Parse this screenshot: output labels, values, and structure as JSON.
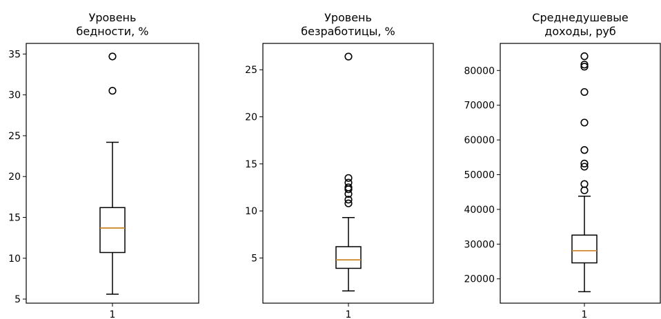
{
  "chart_data": [
    {
      "type": "boxplot",
      "title": [
        "Уровень",
        "бедности, %"
      ],
      "xlabel": "",
      "ylabel": "",
      "ylim": [
        4.5,
        36.3
      ],
      "yticks": [
        5,
        10,
        15,
        20,
        25,
        30,
        35
      ],
      "categories": [
        "1"
      ],
      "box": {
        "whisker_low": 5.6,
        "q1": 10.7,
        "median": 13.7,
        "q3": 16.2,
        "whisker_high": 24.2,
        "outliers": [
          30.5,
          34.7
        ]
      }
    },
    {
      "type": "boxplot",
      "title": [
        "Уровень",
        "безработицы, %"
      ],
      "xlabel": "",
      "ylabel": "",
      "ylim": [
        0.2,
        27.8
      ],
      "yticks": [
        5,
        10,
        15,
        20,
        25
      ],
      "categories": [
        "1"
      ],
      "box": {
        "whisker_low": 1.5,
        "q1": 3.9,
        "median": 4.8,
        "q3": 6.2,
        "whisker_high": 9.3,
        "outliers": [
          10.8,
          11.2,
          11.8,
          12.3,
          12.5,
          13.0,
          13.5,
          26.4
        ]
      }
    },
    {
      "type": "boxplot",
      "title": [
        "Среднедушевые",
        "доходы, руб"
      ],
      "xlabel": "",
      "ylabel": "",
      "ylim": [
        13000,
        87800
      ],
      "yticks": [
        20000,
        30000,
        40000,
        50000,
        60000,
        70000,
        80000
      ],
      "categories": [
        "1"
      ],
      "box": {
        "whisker_low": 16300,
        "q1": 24600,
        "median": 28100,
        "q3": 32600,
        "whisker_high": 43800,
        "outliers": [
          45500,
          47300,
          52300,
          53200,
          57100,
          65000,
          73800,
          81100,
          81700,
          84100
        ]
      }
    }
  ]
}
